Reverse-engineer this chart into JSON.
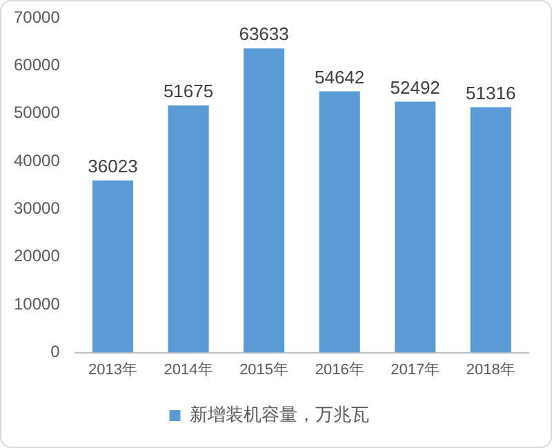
{
  "chart_data": {
    "type": "bar",
    "categories": [
      "2013年",
      "2014年",
      "2015年",
      "2016年",
      "2017年",
      "2018年"
    ],
    "series": [
      {
        "name": "新增装机容量，万兆瓦",
        "color": "#5b9bd5",
        "values": [
          36023,
          51675,
          63633,
          54642,
          52492,
          51316
        ]
      }
    ],
    "ylim": [
      0,
      70000
    ],
    "yticks": [
      0,
      10000,
      20000,
      30000,
      40000,
      50000,
      60000,
      70000
    ],
    "grid": false,
    "legend": "bottom",
    "data_labels": true
  }
}
